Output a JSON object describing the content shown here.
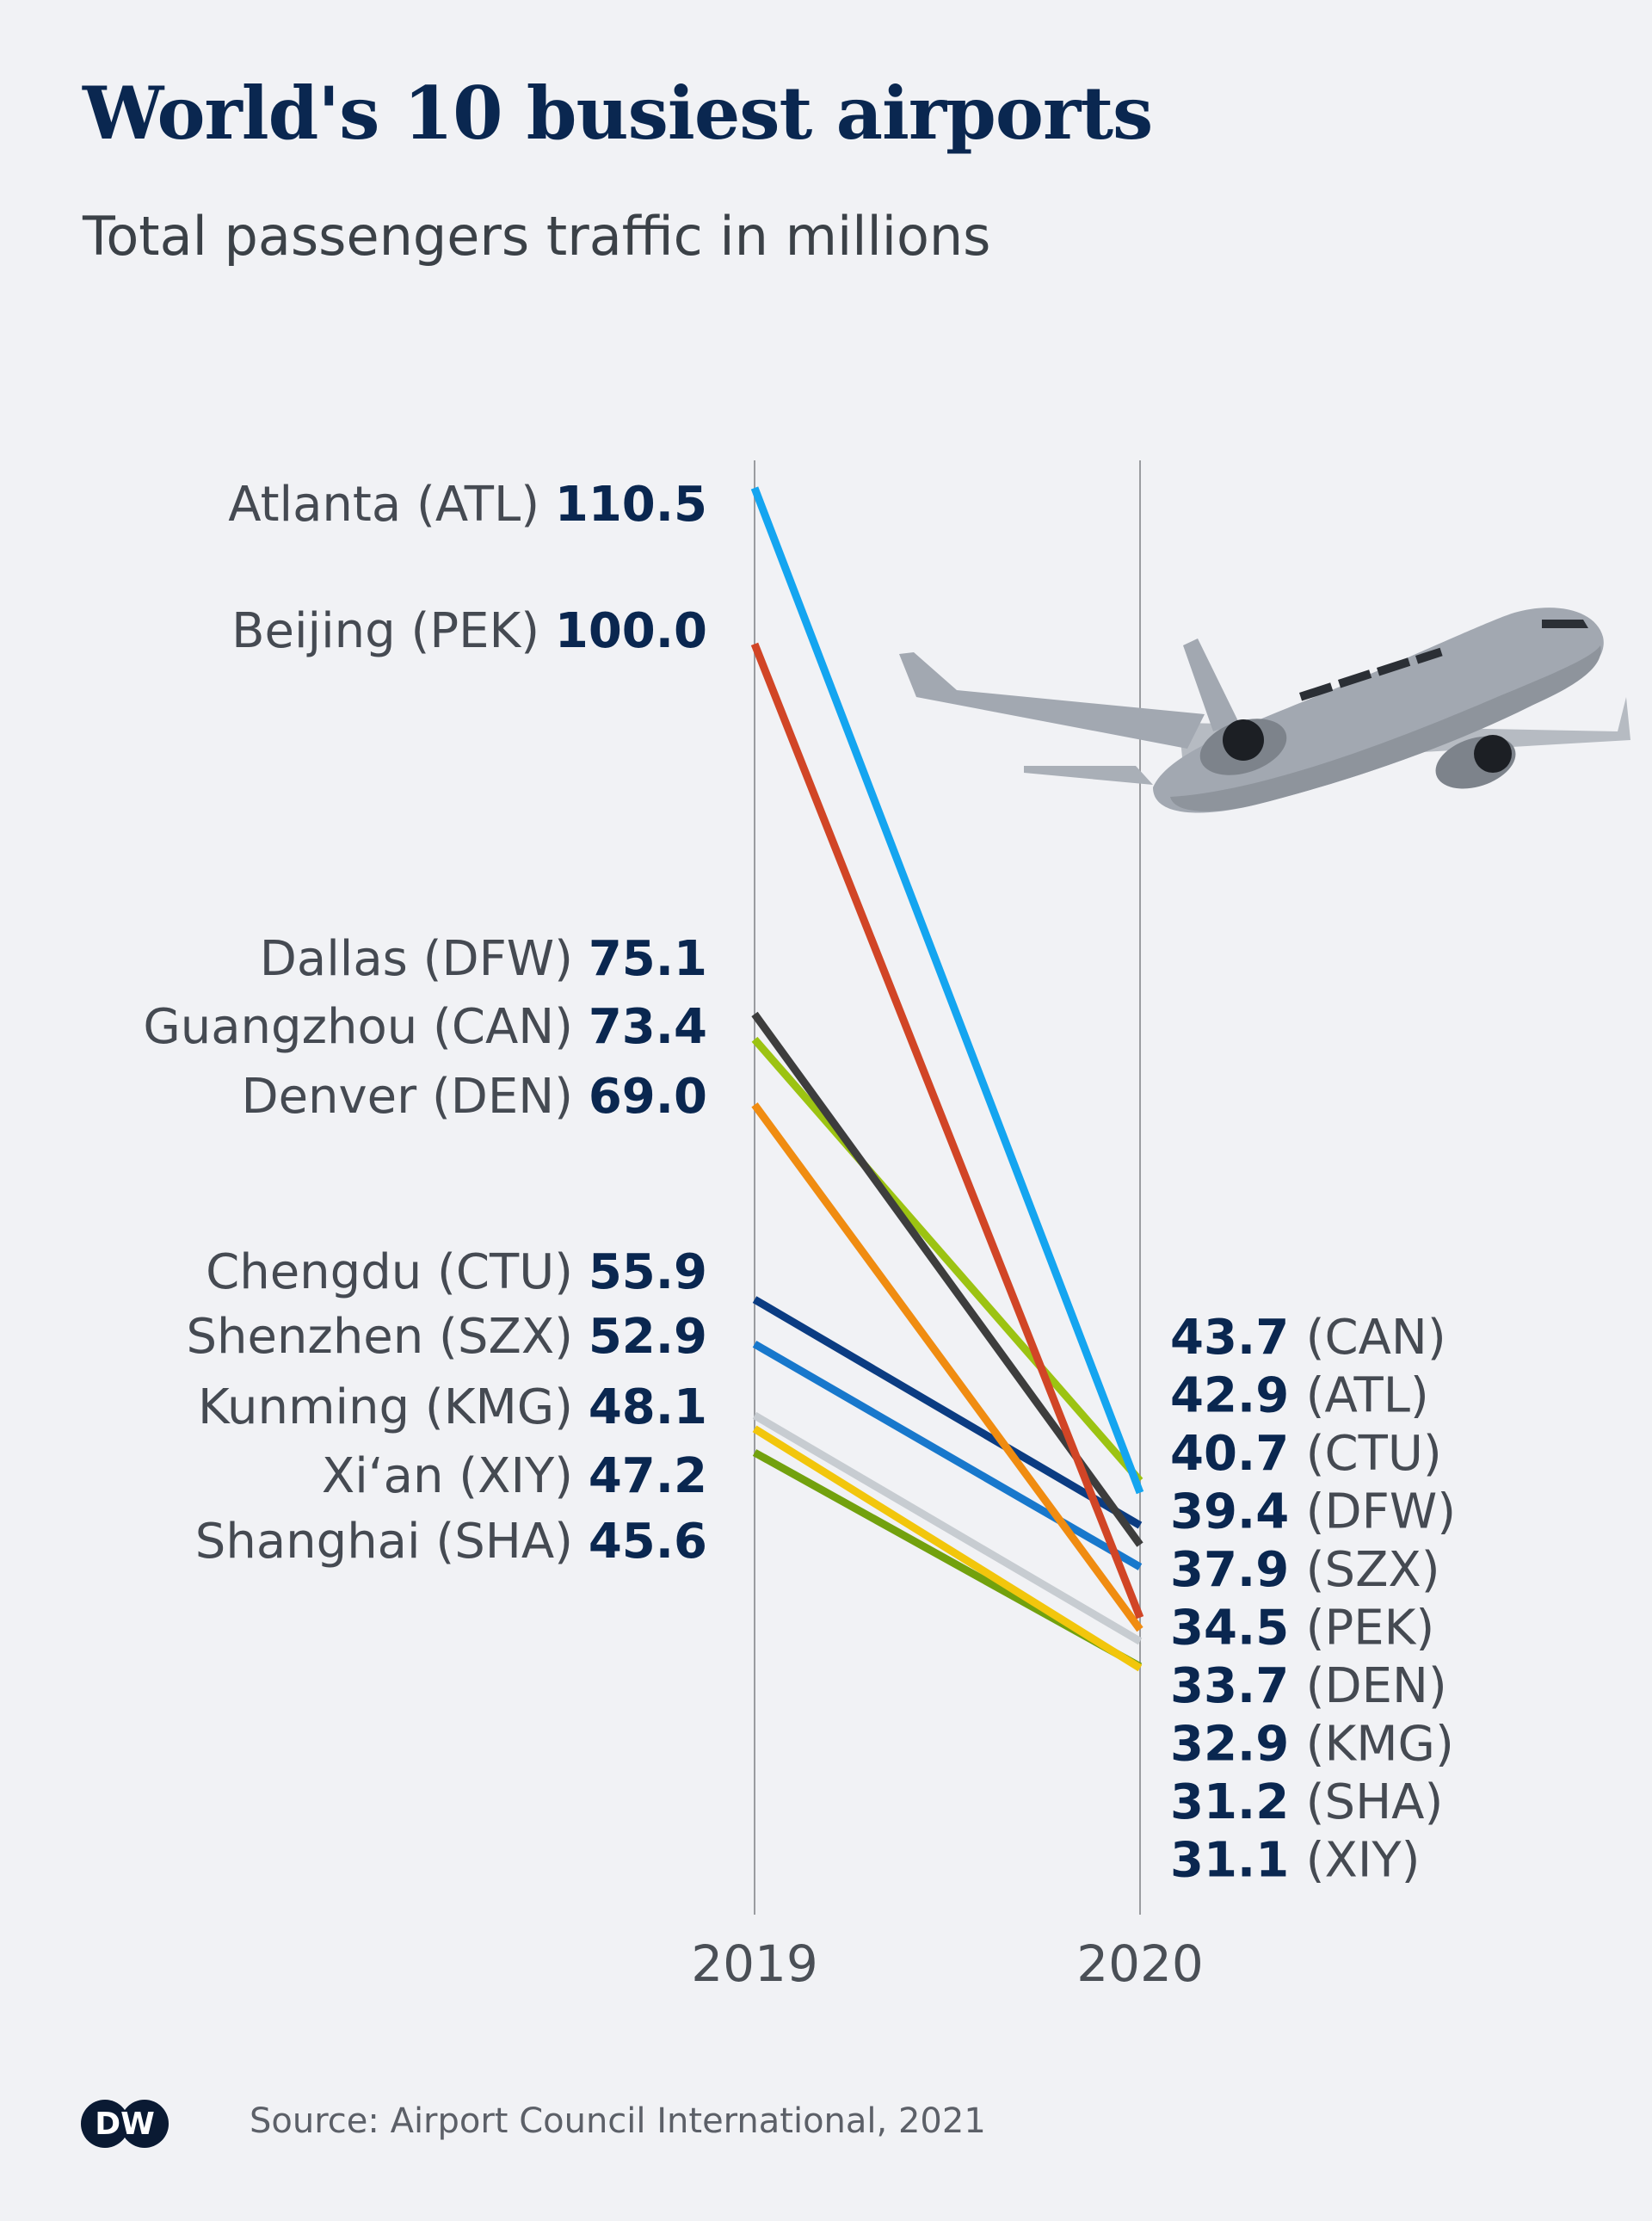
{
  "header": {
    "title": "World's 10 busiest airports",
    "subtitle": "Total passengers traffic in millions"
  },
  "footer": {
    "source": "Source: Airport Council International, 2021",
    "logo_text": "DW"
  },
  "colors": {
    "background": "#f1f2f5",
    "title": "#0a2750",
    "value_text": "#0a2750",
    "label_text": "#454a52",
    "axis_line": "#9a9ca0",
    "plane": "#a2a8b1"
  },
  "illustration": "airplane-icon",
  "chart_data": {
    "type": "line",
    "chart_style": "slope",
    "title": "World's 10 busiest airports",
    "subtitle": "Total passengers traffic in millions",
    "x": [
      "2019",
      "2020"
    ],
    "ylim": [
      30,
      111
    ],
    "grid": false,
    "series": [
      {
        "name": "Atlanta (ATL)",
        "code": "ATL",
        "values": [
          110.5,
          42.9
        ],
        "color": "#14a5f0"
      },
      {
        "name": "Beijing (PEK)",
        "code": "PEK",
        "values": [
          100.0,
          34.5
        ],
        "color": "#d14526"
      },
      {
        "name": "Dallas (DFW)",
        "code": "DFW",
        "values": [
          75.1,
          39.4
        ],
        "color": "#3d3d3d"
      },
      {
        "name": "Guangzhou (CAN)",
        "code": "CAN",
        "values": [
          73.4,
          43.7
        ],
        "color": "#9cc312"
      },
      {
        "name": "Denver (DEN)",
        "code": "DEN",
        "values": [
          69.0,
          33.7
        ],
        "color": "#f08c11"
      },
      {
        "name": "Chengdu (CTU)",
        "code": "CTU",
        "values": [
          55.9,
          40.7
        ],
        "color": "#0b3c82"
      },
      {
        "name": "Shenzhen (SZX)",
        "code": "SZX",
        "values": [
          52.9,
          37.9
        ],
        "color": "#1878cc"
      },
      {
        "name": "Kunming (KMG)",
        "code": "KMG",
        "values": [
          48.1,
          32.9
        ],
        "color": "#c7ccd1"
      },
      {
        "name": "Xi‘an (XIY)",
        "code": "XIY",
        "values": [
          47.2,
          31.1
        ],
        "color": "#f2c60c"
      },
      {
        "name": "Shanghai (SHA)",
        "code": "SHA",
        "values": [
          45.6,
          31.2
        ],
        "color": "#72a10e"
      }
    ],
    "left_labels": [
      {
        "name": "Atlanta (ATL)",
        "value": "110.5"
      },
      {
        "name": "Beijing (PEK)",
        "value": "100.0"
      },
      {
        "name": "Dallas (DFW)",
        "value": "75.1"
      },
      {
        "name": "Guangzhou (CAN)",
        "value": "73.4"
      },
      {
        "name": "Denver (DEN)",
        "value": "69.0"
      },
      {
        "name": "Chengdu (CTU)",
        "value": "55.9"
      },
      {
        "name": "Shenzhen (SZX)",
        "value": "52.9"
      },
      {
        "name": "Kunming (KMG)",
        "value": "48.1"
      },
      {
        "name": "Xi‘an (XIY)",
        "value": "47.2"
      },
      {
        "name": "Shanghai (SHA)",
        "value": "45.6"
      }
    ],
    "right_labels": [
      {
        "value": "43.7",
        "code": "(CAN)"
      },
      {
        "value": "42.9",
        "code": "(ATL)"
      },
      {
        "value": "40.7",
        "code": "(CTU)"
      },
      {
        "value": "39.4",
        "code": "(DFW)"
      },
      {
        "value": "37.9",
        "code": "(SZX)"
      },
      {
        "value": "34.5",
        "code": "(PEK)"
      },
      {
        "value": "33.7",
        "code": "(DEN)"
      },
      {
        "value": "32.9",
        "code": "(KMG)"
      },
      {
        "value": "31.2",
        "code": "(SHA)"
      },
      {
        "value": "31.1",
        "code": "(XIY)"
      }
    ]
  }
}
